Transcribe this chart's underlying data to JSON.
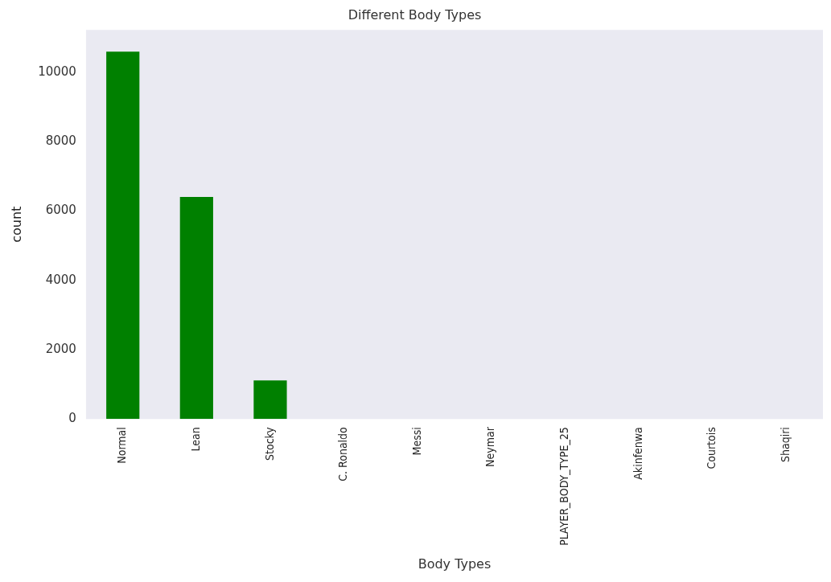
{
  "chart_data": {
    "type": "bar",
    "title": "Different Body Types",
    "xlabel": "Body Types",
    "ylabel": "count",
    "categories": [
      "Normal",
      "Lean",
      "Stocky",
      "C. Ronaldo",
      "Messi",
      "Neymar",
      "PLAYER_BODY_TYPE_25",
      "Akinfenwa",
      "Courtois",
      "Shaqiri"
    ],
    "values": [
      10600,
      6410,
      1110,
      0,
      0,
      0,
      0,
      0,
      0,
      0
    ],
    "color": "#008000",
    "ylim": [
      0,
      11230
    ],
    "yticks": [
      0,
      2000,
      4000,
      6000,
      8000,
      10000
    ],
    "grid": false,
    "legend": false
  }
}
